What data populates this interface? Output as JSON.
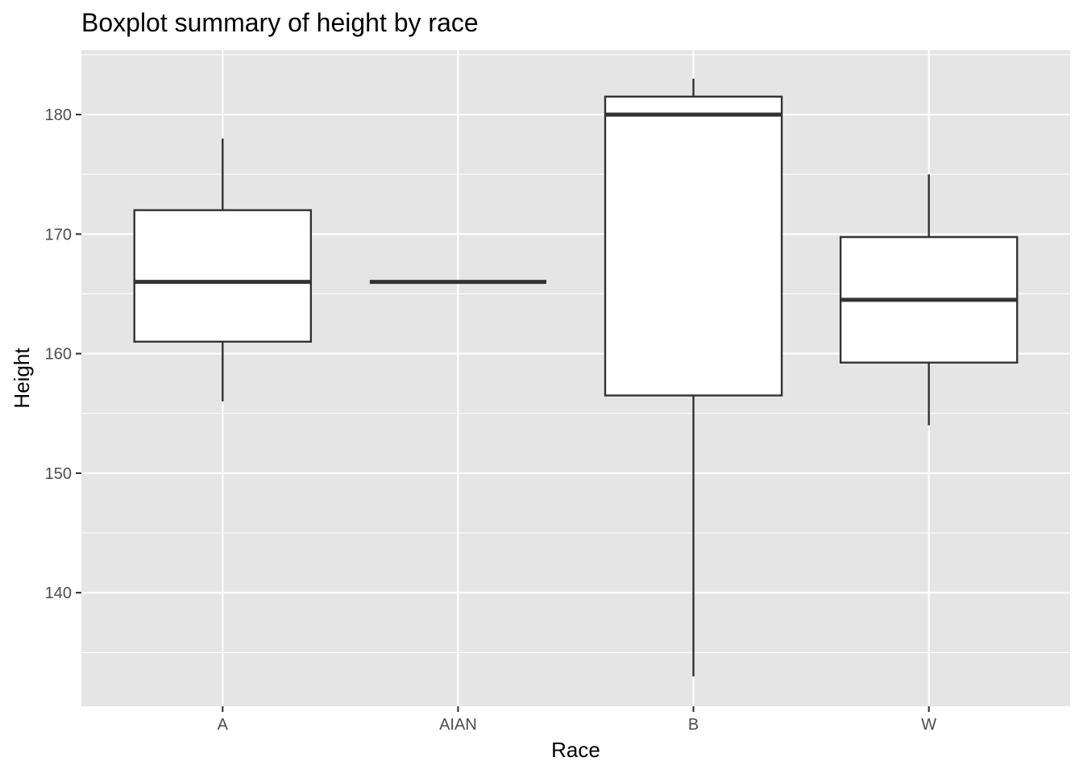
{
  "chart_data": {
    "type": "boxplot",
    "title": "Boxplot summary of height by race",
    "xlabel": "Race",
    "ylabel": "Height",
    "categories": [
      "A",
      "AIAN",
      "B",
      "W"
    ],
    "boxes": [
      {
        "category": "A",
        "min": 156,
        "q1": 161,
        "median": 166,
        "q3": 172,
        "max": 178
      },
      {
        "category": "AIAN",
        "min": 166,
        "q1": 166,
        "median": 166,
        "q3": 166,
        "max": 166
      },
      {
        "category": "B",
        "min": 133,
        "q1": 156.5,
        "median": 180,
        "q3": 181.5,
        "max": 183
      },
      {
        "category": "W",
        "min": 154,
        "q1": 159.25,
        "median": 164.5,
        "q3": 169.75,
        "max": 175
      }
    ],
    "ylim": [
      130.5,
      185.4
    ],
    "yticks": [
      140,
      150,
      160,
      170,
      180
    ],
    "ytick_labels": [
      "140",
      "150",
      "160",
      "170",
      "180"
    ],
    "grid": true,
    "colors": {
      "panel": "#e5e5e5",
      "grid": "#ffffff",
      "box_fill": "#ffffff",
      "box_stroke": "#333333"
    }
  }
}
